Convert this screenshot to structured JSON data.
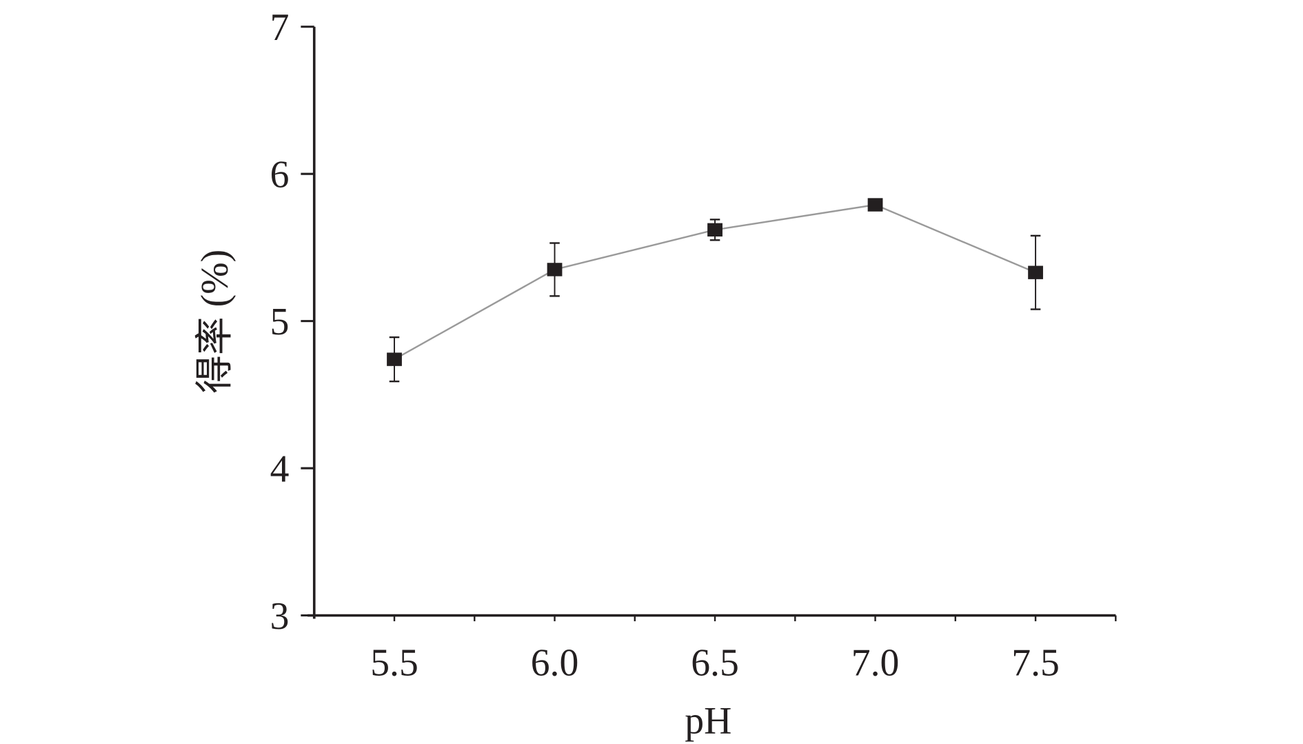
{
  "chart_data": {
    "type": "line",
    "title": "",
    "xlabel": "pH",
    "ylabel": "得率 (%)",
    "xlim": [
      5.25,
      7.75
    ],
    "ylim": [
      3,
      7
    ],
    "x_ticks": [
      "5.5",
      "6.0",
      "6.5",
      "7.0",
      "7.5"
    ],
    "x_tick_values": [
      5.5,
      6.0,
      6.5,
      7.0,
      7.5
    ],
    "x_minor_step": 0.25,
    "y_ticks": [
      "3",
      "4",
      "5",
      "6",
      "7"
    ],
    "y_tick_values": [
      3,
      4,
      5,
      6,
      7
    ],
    "grid": false,
    "legend": null,
    "series": [
      {
        "name": "得率",
        "marker": "square",
        "color": "#231f20",
        "line_color": "#9a9a9a",
        "x": [
          5.5,
          6.0,
          6.5,
          7.0,
          7.5
        ],
        "values": [
          4.74,
          5.35,
          5.62,
          5.79,
          5.33
        ],
        "error": [
          0.15,
          0.18,
          0.07,
          0.02,
          0.25
        ]
      }
    ]
  }
}
